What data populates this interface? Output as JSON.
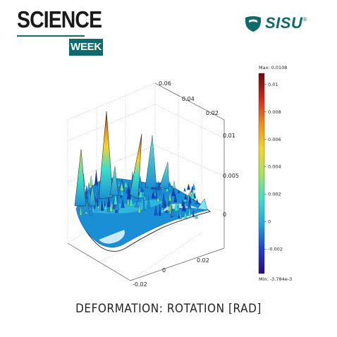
{
  "brand": {
    "title": "SCIENCE",
    "badge": "WEEK",
    "logo_text": "SISU",
    "logo_reg": "®"
  },
  "caption": "DEFORMATION: ROTATION [RAD]",
  "chart_data": {
    "type": "surface-3d",
    "title": "",
    "axes": {
      "x_ticks": [
        "-0.02",
        "0",
        "0.02"
      ],
      "y_ticks": [
        "0.02",
        "0.04",
        "0.06"
      ],
      "z_ticks": [
        "0",
        "0.005",
        "0.01"
      ],
      "grid": true
    },
    "colorbar": {
      "max_label": "Max: 0.0108",
      "min_label": "Min: -3.784e-3",
      "max": 0.0108,
      "min": -0.003784,
      "ticks": [
        "0.01",
        "0.008",
        "0.006",
        "0.004",
        "0.002",
        "0",
        "-0.002"
      ],
      "colormap": [
        "#2b0a7a",
        "#1f3fd1",
        "#1fa8e0",
        "#3ce0c8",
        "#a6e35a",
        "#f5d42a",
        "#f08a1c",
        "#d1271b",
        "#6a0a0a"
      ]
    },
    "surface": {
      "base_color": "#1b8fd6",
      "edge_color": "#6a0a0a"
    }
  }
}
